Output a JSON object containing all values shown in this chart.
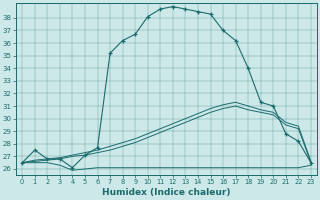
{
  "xlabel": "Humidex (Indice chaleur)",
  "ylabel": "",
  "bg_color": "#cde8e8",
  "line_color": "#1a6b6b",
  "xlim": [
    -0.5,
    23.5
  ],
  "ylim": [
    25.5,
    39.2
  ],
  "xticks": [
    0,
    1,
    2,
    3,
    4,
    5,
    6,
    7,
    8,
    9,
    10,
    11,
    12,
    13,
    14,
    15,
    16,
    17,
    18,
    19,
    20,
    21,
    22,
    23
  ],
  "yticks": [
    26,
    27,
    28,
    29,
    30,
    31,
    32,
    33,
    34,
    35,
    36,
    37,
    38
  ],
  "hours": [
    0,
    1,
    2,
    3,
    4,
    5,
    6,
    7,
    8,
    9,
    10,
    11,
    12,
    13,
    14,
    15,
    16,
    17,
    18,
    19,
    20,
    21,
    22,
    23
  ],
  "humidex_main": [
    26.5,
    27.5,
    26.8,
    26.8,
    26.1,
    27.1,
    27.7,
    35.2,
    36.2,
    36.7,
    38.1,
    38.7,
    38.9,
    38.7,
    38.5,
    38.3,
    37.0,
    36.2,
    34.0,
    31.3,
    31.0,
    28.8,
    28.2,
    26.5
  ],
  "humidex_flat": [
    26.5,
    26.5,
    26.5,
    26.3,
    25.9,
    26.0,
    26.1,
    26.1,
    26.1,
    26.1,
    26.1,
    26.1,
    26.1,
    26.1,
    26.1,
    26.1,
    26.1,
    26.1,
    26.1,
    26.1,
    26.1,
    26.1,
    26.1,
    26.3
  ],
  "humidex_diag1": [
    26.5,
    26.6,
    26.7,
    26.8,
    27.0,
    27.1,
    27.3,
    27.5,
    27.8,
    28.1,
    28.5,
    28.9,
    29.3,
    29.7,
    30.1,
    30.5,
    30.8,
    31.0,
    30.7,
    30.5,
    30.3,
    29.5,
    29.2,
    26.5
  ],
  "humidex_diag2": [
    26.5,
    26.7,
    26.8,
    26.9,
    27.1,
    27.3,
    27.5,
    27.8,
    28.1,
    28.4,
    28.8,
    29.2,
    29.6,
    30.0,
    30.4,
    30.8,
    31.1,
    31.3,
    31.0,
    30.7,
    30.5,
    29.7,
    29.4,
    26.6
  ]
}
